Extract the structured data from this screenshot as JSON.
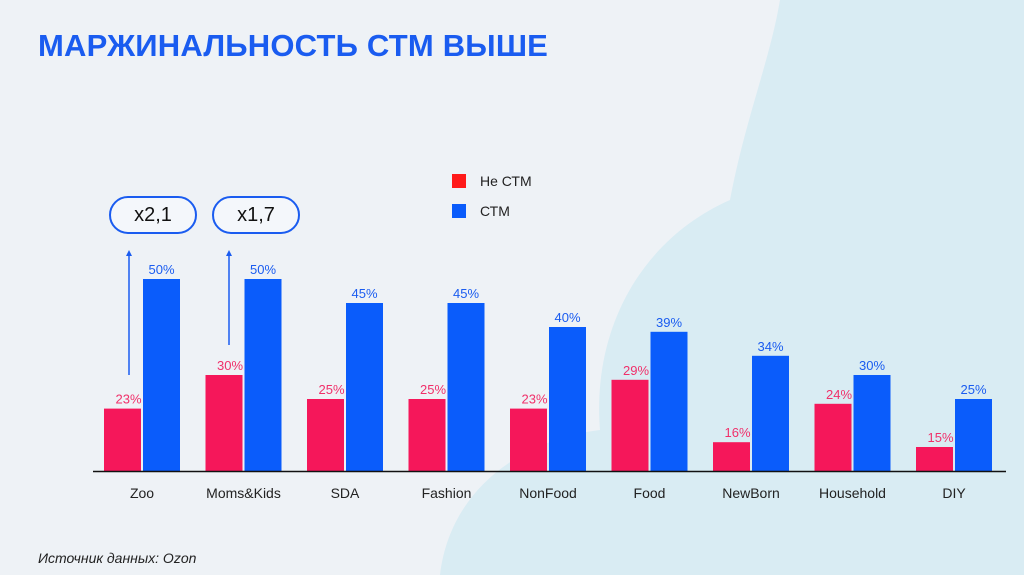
{
  "title": "МАРЖИНАЛЬНОСТЬ СТМ ВЫШЕ",
  "source": "Источник данных: Ozon",
  "annotations": [
    "x2,1",
    "x1,7"
  ],
  "colors": {
    "non_stm": "#f5175a",
    "stm": "#0a5cfb",
    "legend_non_stm": "#ff1a1a",
    "title": "#1a5cf0"
  },
  "chart_data": {
    "type": "bar",
    "title": "",
    "categories": [
      "Zoo",
      "Moms&Kids",
      "SDA",
      "Fashion",
      "NonFood",
      "Food",
      "NewBorn",
      "Household",
      "DIY"
    ],
    "series": [
      {
        "name": "Не СТМ",
        "values": [
          23,
          30,
          25,
          25,
          23,
          29,
          16,
          24,
          15
        ]
      },
      {
        "name": "СТМ",
        "values": [
          50,
          50,
          45,
          45,
          40,
          39,
          34,
          30,
          25
        ]
      }
    ],
    "value_suffix": "%",
    "ylim": [
      10,
      55
    ],
    "grid": false,
    "legend_position": "top-center"
  }
}
